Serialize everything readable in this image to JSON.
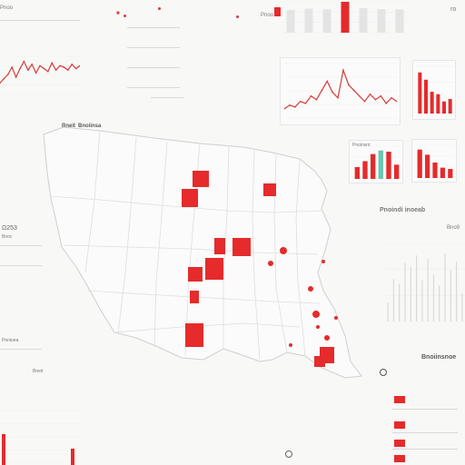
{
  "brand": {
    "accent": "#e52b2b",
    "muted": "#dcdcdc",
    "grid": "#e8e8e8",
    "text": "#6f6f6f"
  },
  "header_left": {
    "logo_label": "Pnoo"
  },
  "header_mid": {
    "marker_label": "■"
  },
  "header_right": {
    "label": "Pnoo",
    "logo": "ro"
  },
  "sections": {
    "map_title_a": "Bneit",
    "map_title_b": "Bnoiinsa",
    "left_value": "Ω253",
    "left_sub": "Bnoc",
    "left_footer": "Pnnioea",
    "right_title": "Pnoindi inoeab",
    "right_value": "Bno9",
    "br_title": "Bnoiinsnoe",
    "small_cards_title": "Pnoinsnt"
  },
  "icons": {
    "search": "search-icon",
    "location": "location-pin-icon"
  },
  "chart_data": [
    {
      "type": "line",
      "title": "",
      "x": [
        0,
        1,
        2,
        3,
        4,
        5,
        6,
        7,
        8,
        9,
        10,
        11,
        12,
        13,
        14,
        15,
        16,
        17,
        18,
        19,
        20
      ],
      "series": [
        {
          "values": [
            8,
            11,
            14,
            19,
            12,
            18,
            23,
            17,
            21,
            15,
            20,
            18,
            16,
            22,
            17,
            20,
            19,
            17,
            21,
            18,
            20
          ]
        }
      ]
    },
    {
      "type": "bar",
      "title": "",
      "categories": [
        "1",
        "2",
        "3",
        "4",
        "5",
        "6",
        "7"
      ],
      "values": [
        72,
        76,
        74,
        98,
        78,
        75,
        74
      ]
    },
    {
      "type": "line",
      "title": "",
      "x": [
        0,
        1,
        2,
        3,
        4,
        5,
        6,
        7,
        8,
        9,
        10,
        11,
        12,
        13,
        14,
        15,
        16,
        17,
        18,
        19,
        20,
        21
      ],
      "series": [
        {
          "values": [
            5,
            7,
            6,
            9,
            8,
            12,
            10,
            15,
            20,
            14,
            11,
            26,
            18,
            15,
            12,
            9,
            13,
            10,
            12,
            8,
            11,
            9
          ]
        }
      ]
    },
    {
      "type": "bar",
      "title": "",
      "categories": [
        "1",
        "2",
        "3",
        "4",
        "5",
        "6"
      ],
      "values": [
        34,
        28,
        18,
        16,
        10,
        12
      ]
    },
    {
      "type": "bar",
      "title": "",
      "categories": [
        "1",
        "2",
        "3",
        "4",
        "5",
        "6"
      ],
      "values": [
        10,
        15,
        21,
        24,
        23,
        12
      ]
    },
    {
      "type": "bar",
      "title": "",
      "categories": [
        "1",
        "2",
        "3",
        "4",
        "5"
      ],
      "values": [
        22,
        18,
        12,
        8,
        7
      ]
    },
    {
      "type": "bar",
      "title": "",
      "categories": [
        "1",
        "2",
        "3",
        "4",
        "5",
        "6",
        "7",
        "8",
        "9",
        "10",
        "11",
        "12",
        "13",
        "14"
      ],
      "values": [
        20,
        45,
        40,
        62,
        58,
        70,
        44,
        66,
        50,
        38,
        72,
        54,
        63,
        30
      ]
    }
  ],
  "legend": {
    "items": [
      "",
      "",
      "",
      ""
    ]
  },
  "map": {
    "cluster_state_count": "11",
    "dots_count": "9"
  }
}
